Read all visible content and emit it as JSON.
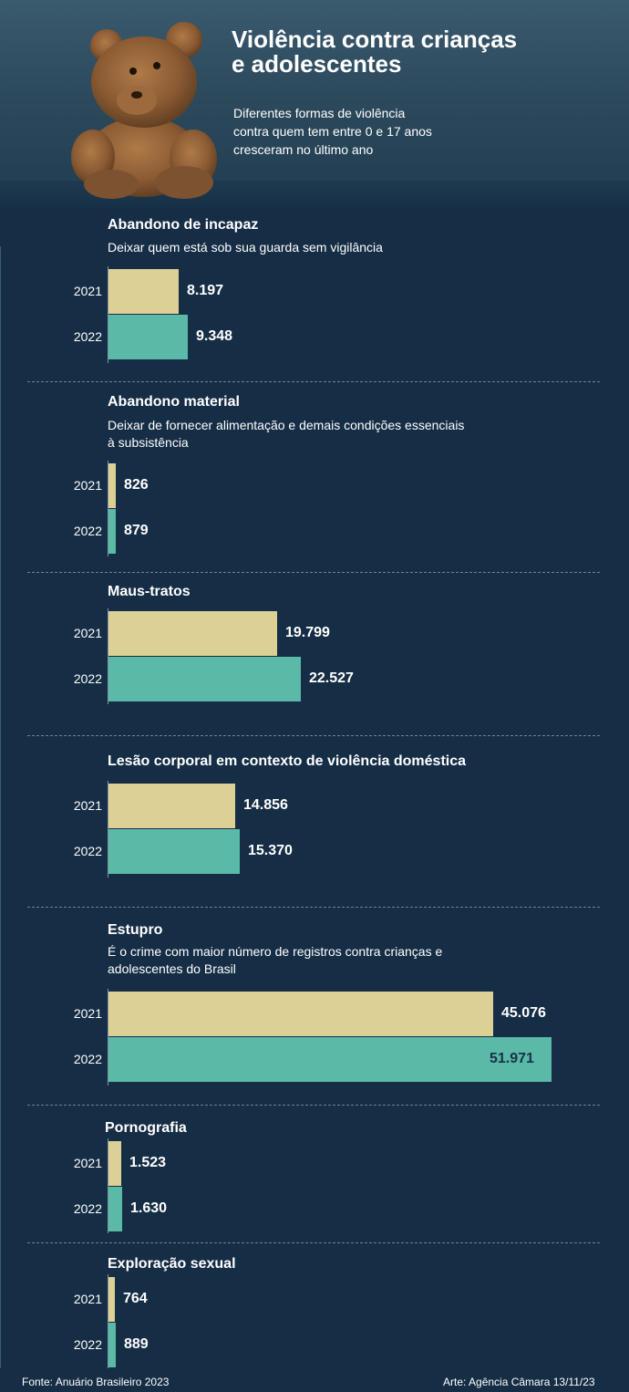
{
  "header": {
    "title_line1": "Violência contra crianças",
    "title_line2": "e adolescentes",
    "subtitle_line1": "Diferentes formas de violência",
    "subtitle_line2": "contra quem tem entre 0 e 17 anos",
    "subtitle_line3": "cresceram no último ano"
  },
  "colors": {
    "background": "#152d45",
    "bar_2021": "#ddd095",
    "bar_2022": "#5bb9a8"
  },
  "chart_data": {
    "type": "bar",
    "orientation": "horizontal",
    "categories": [
      "2021",
      "2022"
    ],
    "panels": [
      {
        "title": "Abandono de incapaz",
        "desc_line1": "Deixar quem está sob sua guarda sem vigilância",
        "desc_line2": "",
        "values": [
          8197,
          9348
        ],
        "labels": [
          "8.197",
          "9.348"
        ]
      },
      {
        "title": "Abandono material",
        "desc_line1": "Deixar de fornecer alimentação e demais condições essenciais",
        "desc_line2": "à subsistência",
        "values": [
          826,
          879
        ],
        "labels": [
          "826",
          "879"
        ]
      },
      {
        "title": "Maus-tratos",
        "desc_line1": "",
        "desc_line2": "",
        "values": [
          19799,
          22527
        ],
        "labels": [
          "19.799",
          "22.527"
        ]
      },
      {
        "title": "Lesão corporal em contexto de violência doméstica",
        "desc_line1": "",
        "desc_line2": "",
        "values": [
          14856,
          15370
        ],
        "labels": [
          "14.856",
          "15.370"
        ]
      },
      {
        "title": "Estupro",
        "desc_line1": "É o crime com maior número de registros contra crianças e",
        "desc_line2": "adolescentes do Brasil",
        "values": [
          45076,
          51971
        ],
        "labels": [
          "45.076",
          "51.971"
        ]
      },
      {
        "title": "Pornografia",
        "desc_line1": "",
        "desc_line2": "",
        "values": [
          1523,
          1630
        ],
        "labels": [
          "1.523",
          "1.630"
        ]
      },
      {
        "title": "Exploração sexual",
        "desc_line1": "",
        "desc_line2": "",
        "values": [
          764,
          889
        ],
        "labels": [
          "764",
          "889"
        ]
      }
    ]
  },
  "footer": {
    "source": "Fonte: Anuário Brasileiro 2023",
    "credit": "Arte: Agência Câmara 13/11/23"
  }
}
